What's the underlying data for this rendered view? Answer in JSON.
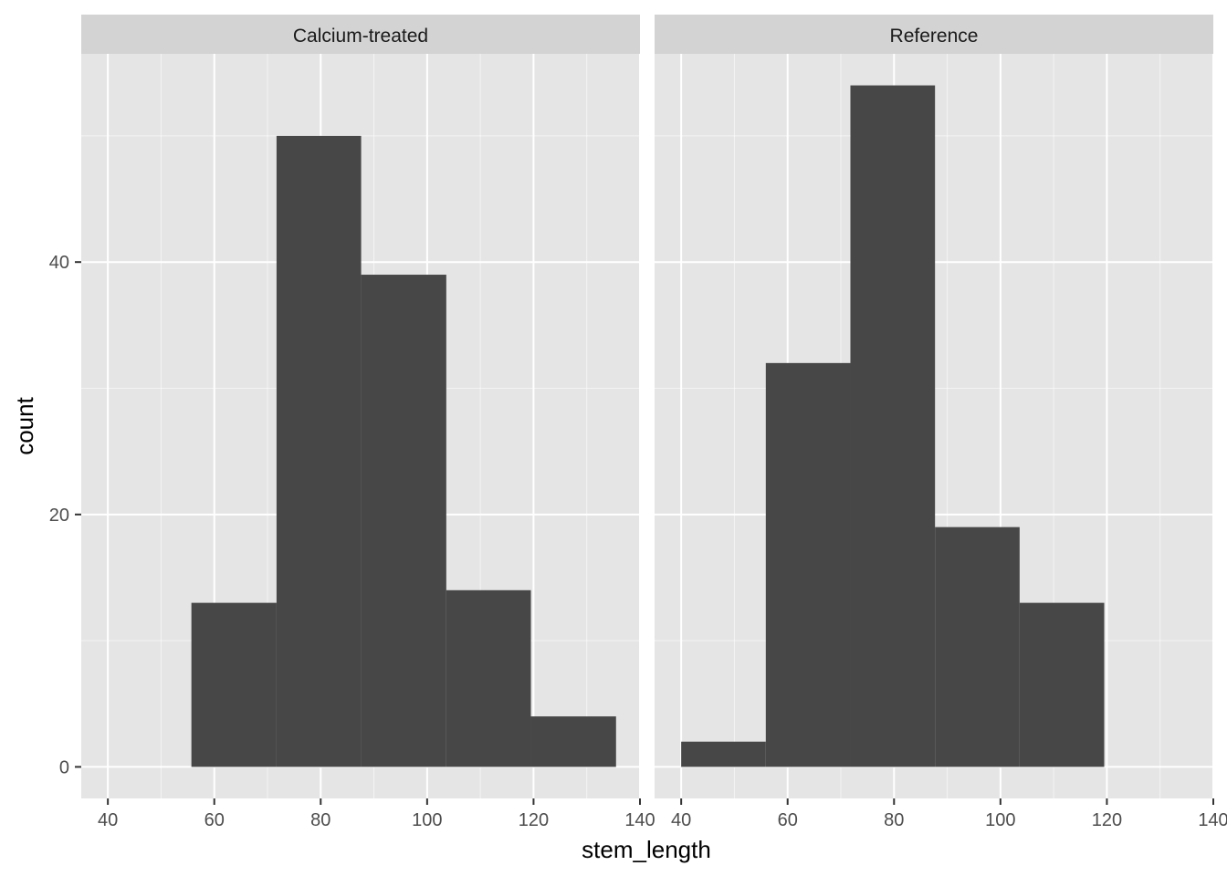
{
  "chart_data": {
    "type": "bar",
    "subtype": "histogram-faceted",
    "xlabel": "stem_length",
    "ylabel": "count",
    "xlim": [
      35,
      140
    ],
    "ylim": [
      -2.5,
      56.5
    ],
    "x_ticks": [
      40,
      60,
      80,
      100,
      120,
      140
    ],
    "x_tick_labels": [
      "40",
      "60",
      "80",
      "100",
      "120",
      "140"
    ],
    "y_ticks": [
      0,
      20,
      40
    ],
    "y_tick_labels": [
      "0",
      "20",
      "40"
    ],
    "grid": true,
    "bar_color": "#474747",
    "panel_background": "#e5e5e5",
    "strip_background": "#d3d3d3",
    "grid_color": "#ffffff",
    "facets": [
      {
        "label": "Calcium-treated",
        "bins": [
          {
            "x_start": 55.7,
            "x_end": 71.7,
            "count": 13
          },
          {
            "x_start": 71.7,
            "x_end": 87.6,
            "count": 50
          },
          {
            "x_start": 87.6,
            "x_end": 103.6,
            "count": 39
          },
          {
            "x_start": 103.6,
            "x_end": 119.5,
            "count": 14
          },
          {
            "x_start": 119.5,
            "x_end": 135.5,
            "count": 4
          }
        ]
      },
      {
        "label": "Reference",
        "bins": [
          {
            "x_start": 40.0,
            "x_end": 55.9,
            "count": 2
          },
          {
            "x_start": 55.9,
            "x_end": 71.8,
            "count": 32
          },
          {
            "x_start": 71.8,
            "x_end": 87.7,
            "count": 54
          },
          {
            "x_start": 87.7,
            "x_end": 103.6,
            "count": 19
          },
          {
            "x_start": 103.6,
            "x_end": 119.5,
            "count": 13
          }
        ]
      }
    ]
  }
}
